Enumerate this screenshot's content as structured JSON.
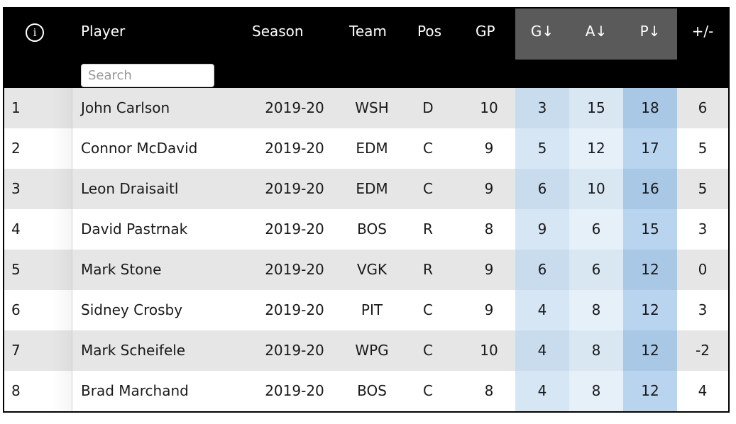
{
  "header": {
    "info_symbol": "i",
    "player": "Player",
    "season": "Season",
    "team": "Team",
    "pos": "Pos",
    "gp": "GP",
    "g": "G↓",
    "a": "A↓",
    "p": "P↓",
    "plusminus": "+/-"
  },
  "search": {
    "placeholder": "Search",
    "value": ""
  },
  "rows": [
    {
      "rank": "1",
      "player": "John Carlson",
      "season": "2019-20",
      "team": "WSH",
      "pos": "D",
      "gp": "10",
      "g": "3",
      "a": "15",
      "p": "18",
      "pm": "6"
    },
    {
      "rank": "2",
      "player": "Connor McDavid",
      "season": "2019-20",
      "team": "EDM",
      "pos": "C",
      "gp": "9",
      "g": "5",
      "a": "12",
      "p": "17",
      "pm": "5"
    },
    {
      "rank": "3",
      "player": "Leon Draisaitl",
      "season": "2019-20",
      "team": "EDM",
      "pos": "C",
      "gp": "9",
      "g": "6",
      "a": "10",
      "p": "16",
      "pm": "5"
    },
    {
      "rank": "4",
      "player": "David Pastrnak",
      "season": "2019-20",
      "team": "BOS",
      "pos": "R",
      "gp": "8",
      "g": "9",
      "a": "6",
      "p": "15",
      "pm": "3"
    },
    {
      "rank": "5",
      "player": "Mark Stone",
      "season": "2019-20",
      "team": "VGK",
      "pos": "R",
      "gp": "9",
      "g": "6",
      "a": "6",
      "p": "12",
      "pm": "0"
    },
    {
      "rank": "6",
      "player": "Sidney Crosby",
      "season": "2019-20",
      "team": "PIT",
      "pos": "C",
      "gp": "9",
      "g": "4",
      "a": "8",
      "p": "12",
      "pm": "3"
    },
    {
      "rank": "7",
      "player": "Mark Scheifele",
      "season": "2019-20",
      "team": "WPG",
      "pos": "C",
      "gp": "10",
      "g": "4",
      "a": "8",
      "p": "12",
      "pm": "-2"
    },
    {
      "rank": "8",
      "player": "Brad Marchand",
      "season": "2019-20",
      "team": "BOS",
      "pos": "C",
      "gp": "8",
      "g": "4",
      "a": "8",
      "p": "12",
      "pm": "4"
    }
  ]
}
